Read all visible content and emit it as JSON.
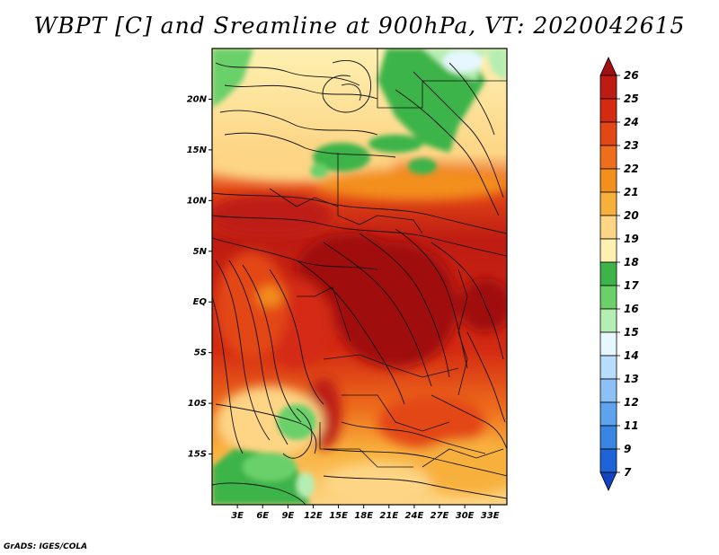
{
  "title": "WBPT [C] and Sreamline at 900hPa, VT: 2020042615",
  "credit": "GrADS: IGES/COLA",
  "map": {
    "lat_labels": [
      "20N",
      "15N",
      "10N",
      "5N",
      "EQ",
      "5S",
      "10S",
      "15S"
    ],
    "lon_labels": [
      "3E",
      "6E",
      "9E",
      "12E",
      "15E",
      "18E",
      "21E",
      "24E",
      "27E",
      "30E",
      "33E"
    ],
    "lat_range": [
      -20,
      25
    ],
    "lon_range": [
      0,
      35
    ]
  },
  "colorbar": {
    "labels": [
      "26",
      "25",
      "24",
      "23",
      "22",
      "21",
      "20",
      "19",
      "18",
      "17",
      "16",
      "15",
      "14",
      "13",
      "12",
      "11",
      "9",
      "7"
    ],
    "colors": [
      "#a01010",
      "#be1c12",
      "#d42a12",
      "#e34716",
      "#ee6e1c",
      "#f38f1c",
      "#f8b03c",
      "#fdd585",
      "#fdf0b1",
      "#3cb44a",
      "#6bd06a",
      "#b5eeb2",
      "#e6f7ff",
      "#b8dcfb",
      "#8cc1f7",
      "#5ea3ee",
      "#3a85e4",
      "#1e64d8",
      "#1244c0"
    ]
  }
}
